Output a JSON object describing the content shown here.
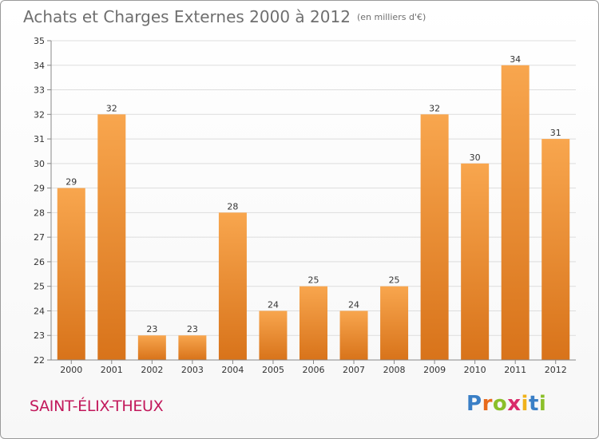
{
  "header": {
    "title": "Achats et Charges Externes 2000 à 2012",
    "unit": "(en milliers d'€)"
  },
  "footer": {
    "place": "SAINT-ÉLIX-THEUX",
    "logo_letters": [
      "P",
      "r",
      "o",
      "x",
      "i",
      "t",
      "i"
    ],
    "logo_colors": [
      "#3a7fc6",
      "#e86a1c",
      "#8bbf2a",
      "#d92c6a",
      "#f0b21a",
      "#3a7fc6",
      "#8bbf2a"
    ]
  },
  "colors": {
    "bar_light": "#f8a64e",
    "bar_dark": "#d8731a",
    "grid": "#dddddd",
    "text": "#333333"
  },
  "chart_data": {
    "type": "bar",
    "title": "Achats et Charges Externes 2000 à 2012",
    "subtitle": "(en milliers d'€)",
    "categories": [
      "2000",
      "2001",
      "2002",
      "2003",
      "2004",
      "2005",
      "2006",
      "2007",
      "2008",
      "2009",
      "2010",
      "2011",
      "2012"
    ],
    "values": [
      29,
      32,
      23,
      23,
      28,
      24,
      25,
      24,
      25,
      32,
      30,
      34,
      31
    ],
    "ylim": [
      22,
      35
    ],
    "yticks": [
      22,
      23,
      24,
      25,
      26,
      27,
      28,
      29,
      30,
      31,
      32,
      33,
      34,
      35
    ],
    "grid": true,
    "data_labels": true
  }
}
